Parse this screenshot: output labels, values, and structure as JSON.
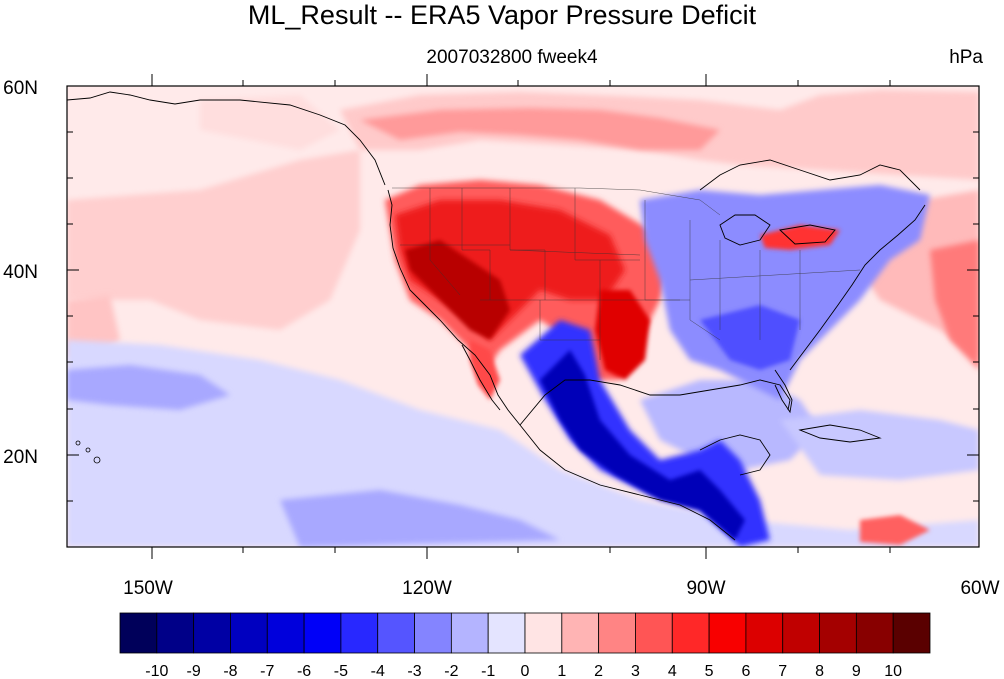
{
  "title": "ML_Result -- ERA5 Vapor Pressure Deficit",
  "subtitle": "2007032800 fweek4",
  "units": "hPa",
  "lat_labels": [
    "60N",
    "40N",
    "20N"
  ],
  "lon_labels": [
    "150W",
    "120W",
    "90W",
    "60W"
  ],
  "colorbar": {
    "labels": [
      "-10",
      "-9",
      "-8",
      "-7",
      "-6",
      "-5",
      "-4",
      "-3",
      "-2",
      "-1",
      "0",
      "1",
      "2",
      "3",
      "4",
      "5",
      "6",
      "7",
      "8",
      "9",
      "10"
    ],
    "colors": [
      "#00005a",
      "#000088",
      "#0000a4",
      "#0000c0",
      "#0000dc",
      "#0000f8",
      "#2828ff",
      "#5555ff",
      "#8484ff",
      "#b4b4ff",
      "#e4e4ff",
      "#ffe4e4",
      "#ffb4b4",
      "#ff8484",
      "#ff5555",
      "#ff2828",
      "#f80000",
      "#dc0000",
      "#c00000",
      "#a40000",
      "#880000",
      "#5a0000"
    ]
  },
  "map_extent": {
    "lon": [
      -160,
      -60
    ],
    "lat": [
      10,
      60
    ]
  },
  "colors": {
    "background": "#ffe8e8",
    "coastline": "#000000",
    "warm_strong": "#c00000",
    "cold_strong": "#0000c8"
  }
}
